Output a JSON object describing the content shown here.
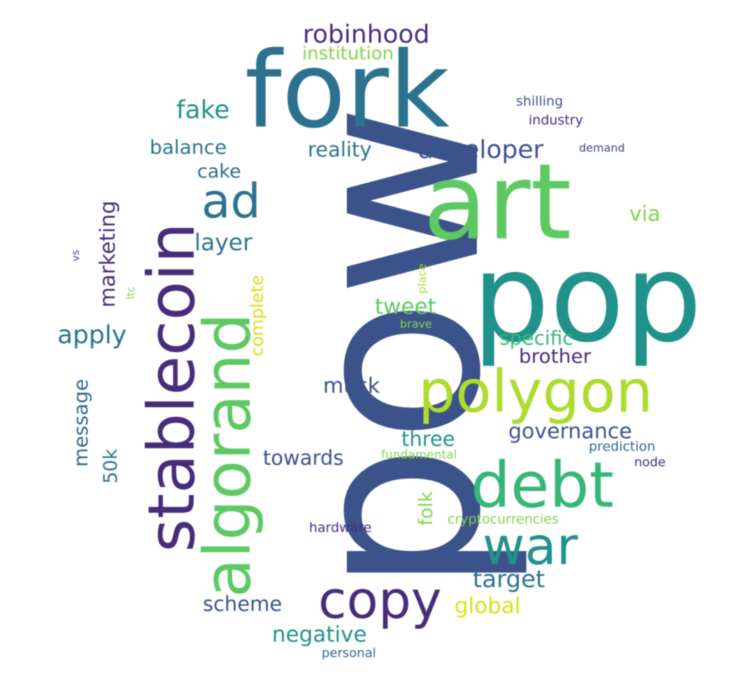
{
  "palette": {
    "dark_purple": "#472c7a",
    "indigo": "#3b528b",
    "slate_blue": "#414487",
    "blue_teal": "#31688e",
    "teal": "#2c728e",
    "teal_green": "#21918c",
    "green_teal": "#28ae80",
    "green": "#5ec962",
    "light_green": "#84d44b",
    "lime": "#addc30",
    "yellow": "#d8e219"
  },
  "words": [
    {
      "id": "pow",
      "text": "pow",
      "color": "#3b528b"
    },
    {
      "id": "fork",
      "text": "fork",
      "color": "#2c728e"
    },
    {
      "id": "art",
      "text": "art",
      "color": "#5ec962"
    },
    {
      "id": "pop",
      "text": "pop",
      "color": "#21918c"
    },
    {
      "id": "stablecoin",
      "text": "stablecoin",
      "color": "#472c7a"
    },
    {
      "id": "algorand",
      "text": "algorand",
      "color": "#5ec962"
    },
    {
      "id": "polygon",
      "text": "polygon",
      "color": "#addc30"
    },
    {
      "id": "debt",
      "text": "debt",
      "color": "#35b779"
    },
    {
      "id": "war",
      "text": "war",
      "color": "#21918c"
    },
    {
      "id": "copy",
      "text": "copy",
      "color": "#472c7a"
    },
    {
      "id": "ad",
      "text": "ad",
      "color": "#2c728e"
    },
    {
      "id": "robinhood",
      "text": "robinhood",
      "color": "#472c7a"
    },
    {
      "id": "institution",
      "text": "institution",
      "color": "#84d44b"
    },
    {
      "id": "developer",
      "text": "developer",
      "color": "#3b528b"
    },
    {
      "id": "fake",
      "text": "fake",
      "color": "#21918c"
    },
    {
      "id": "balance",
      "text": "balance",
      "color": "#2c728e"
    },
    {
      "id": "reality",
      "text": "reality",
      "color": "#2c728e"
    },
    {
      "id": "cake",
      "text": "cake",
      "color": "#31688e"
    },
    {
      "id": "layer",
      "text": "layer",
      "color": "#2c728e"
    },
    {
      "id": "via",
      "text": "via",
      "color": "#84d44b"
    },
    {
      "id": "shilling",
      "text": "shilling",
      "color": "#3b528b"
    },
    {
      "id": "industry",
      "text": "industry",
      "color": "#472c7a"
    },
    {
      "id": "demand",
      "text": "demand",
      "color": "#414487"
    },
    {
      "id": "marketing",
      "text": "marketing",
      "color": "#472c7a"
    },
    {
      "id": "vs",
      "text": "vs",
      "color": "#3b528b"
    },
    {
      "id": "ltc",
      "text": "ltc",
      "color": "#84d44b"
    },
    {
      "id": "complete",
      "text": "complete",
      "color": "#d8e219"
    },
    {
      "id": "place",
      "text": "place",
      "color": "#addc30"
    },
    {
      "id": "apply",
      "text": "apply",
      "color": "#2c728e"
    },
    {
      "id": "tweet",
      "text": "tweet",
      "color": "#5ec962"
    },
    {
      "id": "brave",
      "text": "brave",
      "color": "#84d44b"
    },
    {
      "id": "specific",
      "text": "specific",
      "color": "#35b779"
    },
    {
      "id": "brother",
      "text": "brother",
      "color": "#472c7a"
    },
    {
      "id": "musk",
      "text": "musk",
      "color": "#3b528b"
    },
    {
      "id": "message",
      "text": "message",
      "color": "#31688e"
    },
    {
      "id": "50k",
      "text": "50k",
      "color": "#2c728e"
    },
    {
      "id": "governance",
      "text": "governance",
      "color": "#3b528b"
    },
    {
      "id": "three",
      "text": "three",
      "color": "#21918c"
    },
    {
      "id": "towards",
      "text": "towards",
      "color": "#3b528b"
    },
    {
      "id": "fundamental",
      "text": "fundamental",
      "color": "#84d44b"
    },
    {
      "id": "prediction",
      "text": "prediction",
      "color": "#31688e"
    },
    {
      "id": "node",
      "text": "node",
      "color": "#472c7a"
    },
    {
      "id": "folk",
      "text": "folk",
      "color": "#84d44b"
    },
    {
      "id": "hardware",
      "text": "hardware",
      "color": "#472c7a"
    },
    {
      "id": "cryptocurrencies",
      "text": "cryptocurrencies",
      "color": "#84d44b"
    },
    {
      "id": "target",
      "text": "target",
      "color": "#2c728e"
    },
    {
      "id": "scheme",
      "text": "scheme",
      "color": "#3b528b"
    },
    {
      "id": "global",
      "text": "global",
      "color": "#d8e219"
    },
    {
      "id": "negative",
      "text": "negative",
      "color": "#21918c"
    },
    {
      "id": "personal",
      "text": "personal",
      "color": "#31688e"
    }
  ]
}
